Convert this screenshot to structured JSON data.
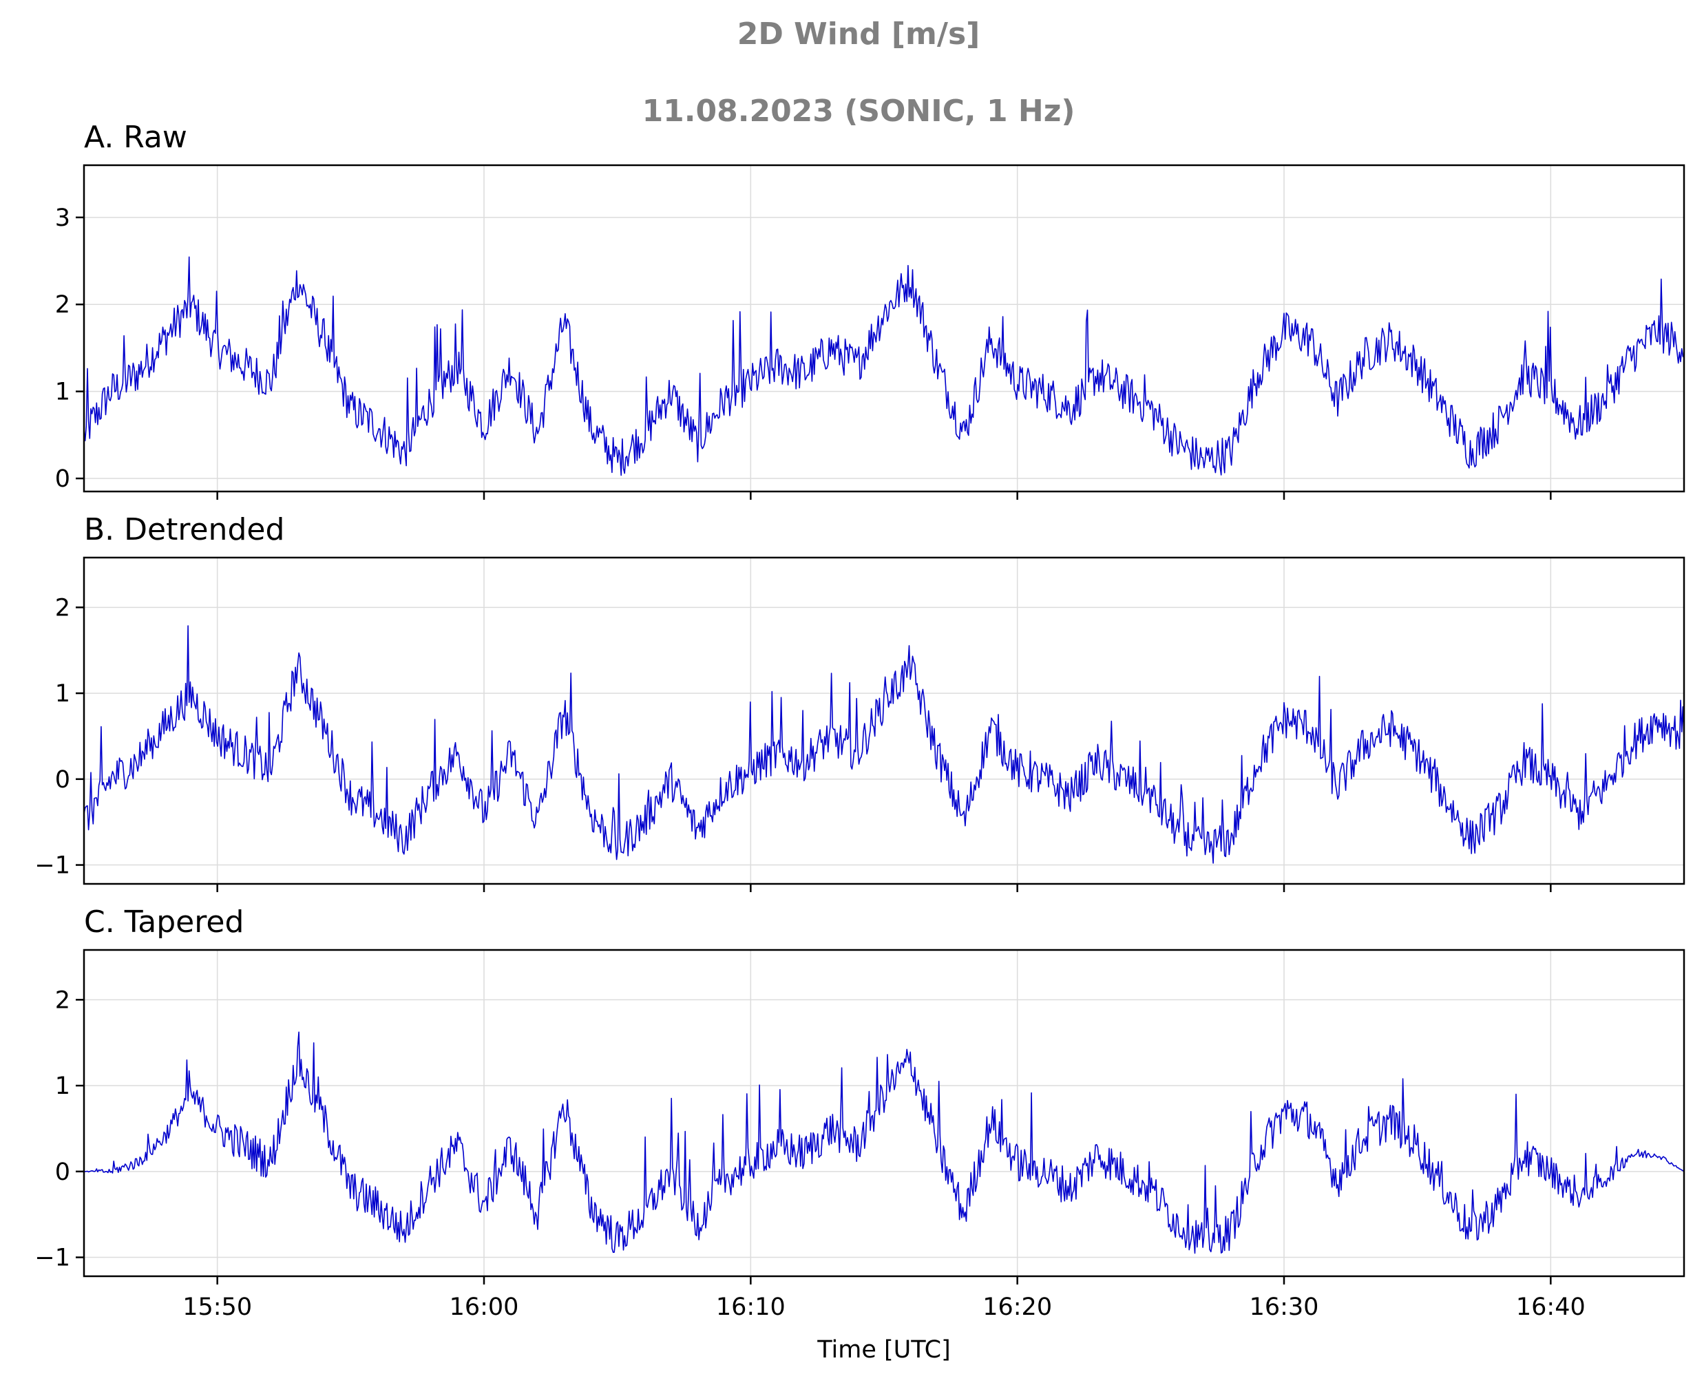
{
  "figure": {
    "title_line1": "2D Wind [m/s]",
    "title_line2": "11.08.2023 (SONIC, 1 Hz)",
    "title_color": "#808080"
  },
  "chart_data": [
    {
      "type": "line",
      "title": "A. Raw",
      "ylabel": "",
      "xlabel": "",
      "xlim": [
        "15:45",
        "16:45"
      ],
      "ylim": [
        -0.15,
        3.6
      ],
      "yticks": [
        0,
        1,
        2,
        3
      ],
      "line_color": "#0000cc",
      "grid": true,
      "series": [
        {
          "x": [
            "15:45",
            "15:46",
            "15:47",
            "15:48",
            "15:49",
            "15:50",
            "15:51",
            "15:52",
            "15:53",
            "15:54",
            "15:55",
            "15:56",
            "15:57",
            "15:58",
            "15:59",
            "16:00",
            "16:01",
            "16:02",
            "16:03",
            "16:04",
            "16:05",
            "16:06",
            "16:07",
            "16:08",
            "16:09",
            "16:10",
            "16:11",
            "16:12",
            "16:13",
            "16:14",
            "16:15",
            "16:16",
            "16:17",
            "16:18",
            "16:19",
            "16:20",
            "16:21",
            "16:22",
            "16:23",
            "16:24",
            "16:25",
            "16:26",
            "16:27",
            "16:28",
            "16:29",
            "16:30",
            "16:31",
            "16:32",
            "16:33",
            "16:34",
            "16:35",
            "16:36",
            "16:37",
            "16:38",
            "16:39",
            "16:40",
            "16:41",
            "16:42",
            "16:43",
            "16:44",
            "16:45"
          ],
          "y": [
            0.5,
            1.0,
            1.2,
            1.6,
            2.0,
            1.5,
            1.3,
            1.1,
            2.3,
            1.6,
            0.8,
            0.6,
            0.3,
            0.9,
            1.3,
            0.6,
            1.3,
            0.5,
            1.8,
            0.6,
            0.2,
            0.5,
            1.0,
            0.4,
            0.9,
            1.1,
            1.3,
            1.2,
            1.5,
            1.3,
            1.9,
            2.3,
            1.3,
            0.5,
            1.6,
            1.1,
            1.0,
            0.8,
            1.2,
            1.0,
            0.8,
            0.4,
            0.2,
            0.3,
            1.2,
            1.7,
            1.6,
            0.9,
            1.4,
            1.6,
            1.3,
            0.8,
            0.3,
            0.6,
            1.2,
            1.0,
            0.6,
            0.9,
            1.4,
            1.7,
            1.5
          ]
        }
      ]
    },
    {
      "type": "line",
      "title": "B. Detrended",
      "ylabel": "",
      "xlabel": "",
      "xlim": [
        "15:45",
        "16:45"
      ],
      "ylim": [
        -1.22,
        2.58
      ],
      "yticks": [
        -1,
        0,
        1,
        2
      ],
      "line_color": "#0000cc",
      "grid": true,
      "series": [
        {
          "x": [
            "15:45",
            "15:46",
            "15:47",
            "15:48",
            "15:49",
            "15:50",
            "15:51",
            "15:52",
            "15:53",
            "15:54",
            "15:55",
            "15:56",
            "15:57",
            "15:58",
            "15:59",
            "16:00",
            "16:01",
            "16:02",
            "16:03",
            "16:04",
            "16:05",
            "16:06",
            "16:07",
            "16:08",
            "16:09",
            "16:10",
            "16:11",
            "16:12",
            "16:13",
            "16:14",
            "16:15",
            "16:16",
            "16:17",
            "16:18",
            "16:19",
            "16:20",
            "16:21",
            "16:22",
            "16:23",
            "16:24",
            "16:25",
            "16:26",
            "16:27",
            "16:28",
            "16:29",
            "16:30",
            "16:31",
            "16:32",
            "16:33",
            "16:34",
            "16:35",
            "16:36",
            "16:37",
            "16:38",
            "16:39",
            "16:40",
            "16:41",
            "16:42",
            "16:43",
            "16:44",
            "16:45"
          ],
          "y": [
            -0.5,
            0.0,
            0.2,
            0.6,
            1.0,
            0.5,
            0.3,
            0.1,
            1.3,
            0.6,
            -0.2,
            -0.4,
            -0.7,
            -0.1,
            0.3,
            -0.4,
            0.3,
            -0.5,
            0.8,
            -0.4,
            -0.8,
            -0.5,
            0.0,
            -0.6,
            -0.1,
            0.1,
            0.3,
            0.2,
            0.5,
            0.3,
            0.9,
            1.3,
            0.3,
            -0.5,
            0.6,
            0.1,
            0.0,
            -0.2,
            0.2,
            0.0,
            -0.2,
            -0.6,
            -0.8,
            -0.7,
            0.2,
            0.7,
            0.6,
            -0.1,
            0.4,
            0.6,
            0.3,
            -0.2,
            -0.7,
            -0.4,
            0.2,
            0.0,
            -0.4,
            -0.1,
            0.4,
            0.7,
            0.5
          ]
        }
      ]
    },
    {
      "type": "line",
      "title": "C. Tapered",
      "ylabel": "",
      "xlabel": "Time [UTC]",
      "xlim": [
        "15:45",
        "16:45"
      ],
      "ylim": [
        -1.22,
        2.58
      ],
      "yticks": [
        -1,
        0,
        1,
        2
      ],
      "xticks": [
        "15:50",
        "16:00",
        "16:10",
        "16:20",
        "16:30",
        "16:40"
      ],
      "line_color": "#0000cc",
      "grid": true,
      "series": [
        {
          "x": [
            "15:45",
            "15:46",
            "15:47",
            "15:48",
            "15:49",
            "15:50",
            "15:51",
            "15:52",
            "15:53",
            "15:54",
            "15:55",
            "15:56",
            "15:57",
            "15:58",
            "15:59",
            "16:00",
            "16:01",
            "16:02",
            "16:03",
            "16:04",
            "16:05",
            "16:06",
            "16:07",
            "16:08",
            "16:09",
            "16:10",
            "16:11",
            "16:12",
            "16:13",
            "16:14",
            "16:15",
            "16:16",
            "16:17",
            "16:18",
            "16:19",
            "16:20",
            "16:21",
            "16:22",
            "16:23",
            "16:24",
            "16:25",
            "16:26",
            "16:27",
            "16:28",
            "16:29",
            "16:30",
            "16:31",
            "16:32",
            "16:33",
            "16:34",
            "16:35",
            "16:36",
            "16:37",
            "16:38",
            "16:39",
            "16:40",
            "16:41",
            "16:42",
            "16:43",
            "16:44",
            "16:45"
          ],
          "y": [
            0.0,
            0.0,
            0.1,
            0.4,
            0.9,
            0.5,
            0.3,
            0.1,
            1.3,
            0.6,
            -0.2,
            -0.4,
            -0.7,
            -0.1,
            0.3,
            -0.4,
            0.3,
            -0.5,
            0.8,
            -0.4,
            -0.8,
            -0.5,
            0.0,
            -0.6,
            -0.1,
            0.1,
            0.3,
            0.2,
            0.5,
            0.3,
            0.9,
            1.3,
            0.3,
            -0.5,
            0.6,
            0.1,
            0.0,
            -0.2,
            0.2,
            0.0,
            -0.2,
            -0.6,
            -0.8,
            -0.7,
            0.2,
            0.7,
            0.6,
            -0.1,
            0.4,
            0.6,
            0.3,
            -0.2,
            -0.7,
            -0.4,
            0.2,
            0.0,
            -0.3,
            -0.1,
            0.2,
            0.2,
            0.0
          ]
        }
      ]
    }
  ]
}
